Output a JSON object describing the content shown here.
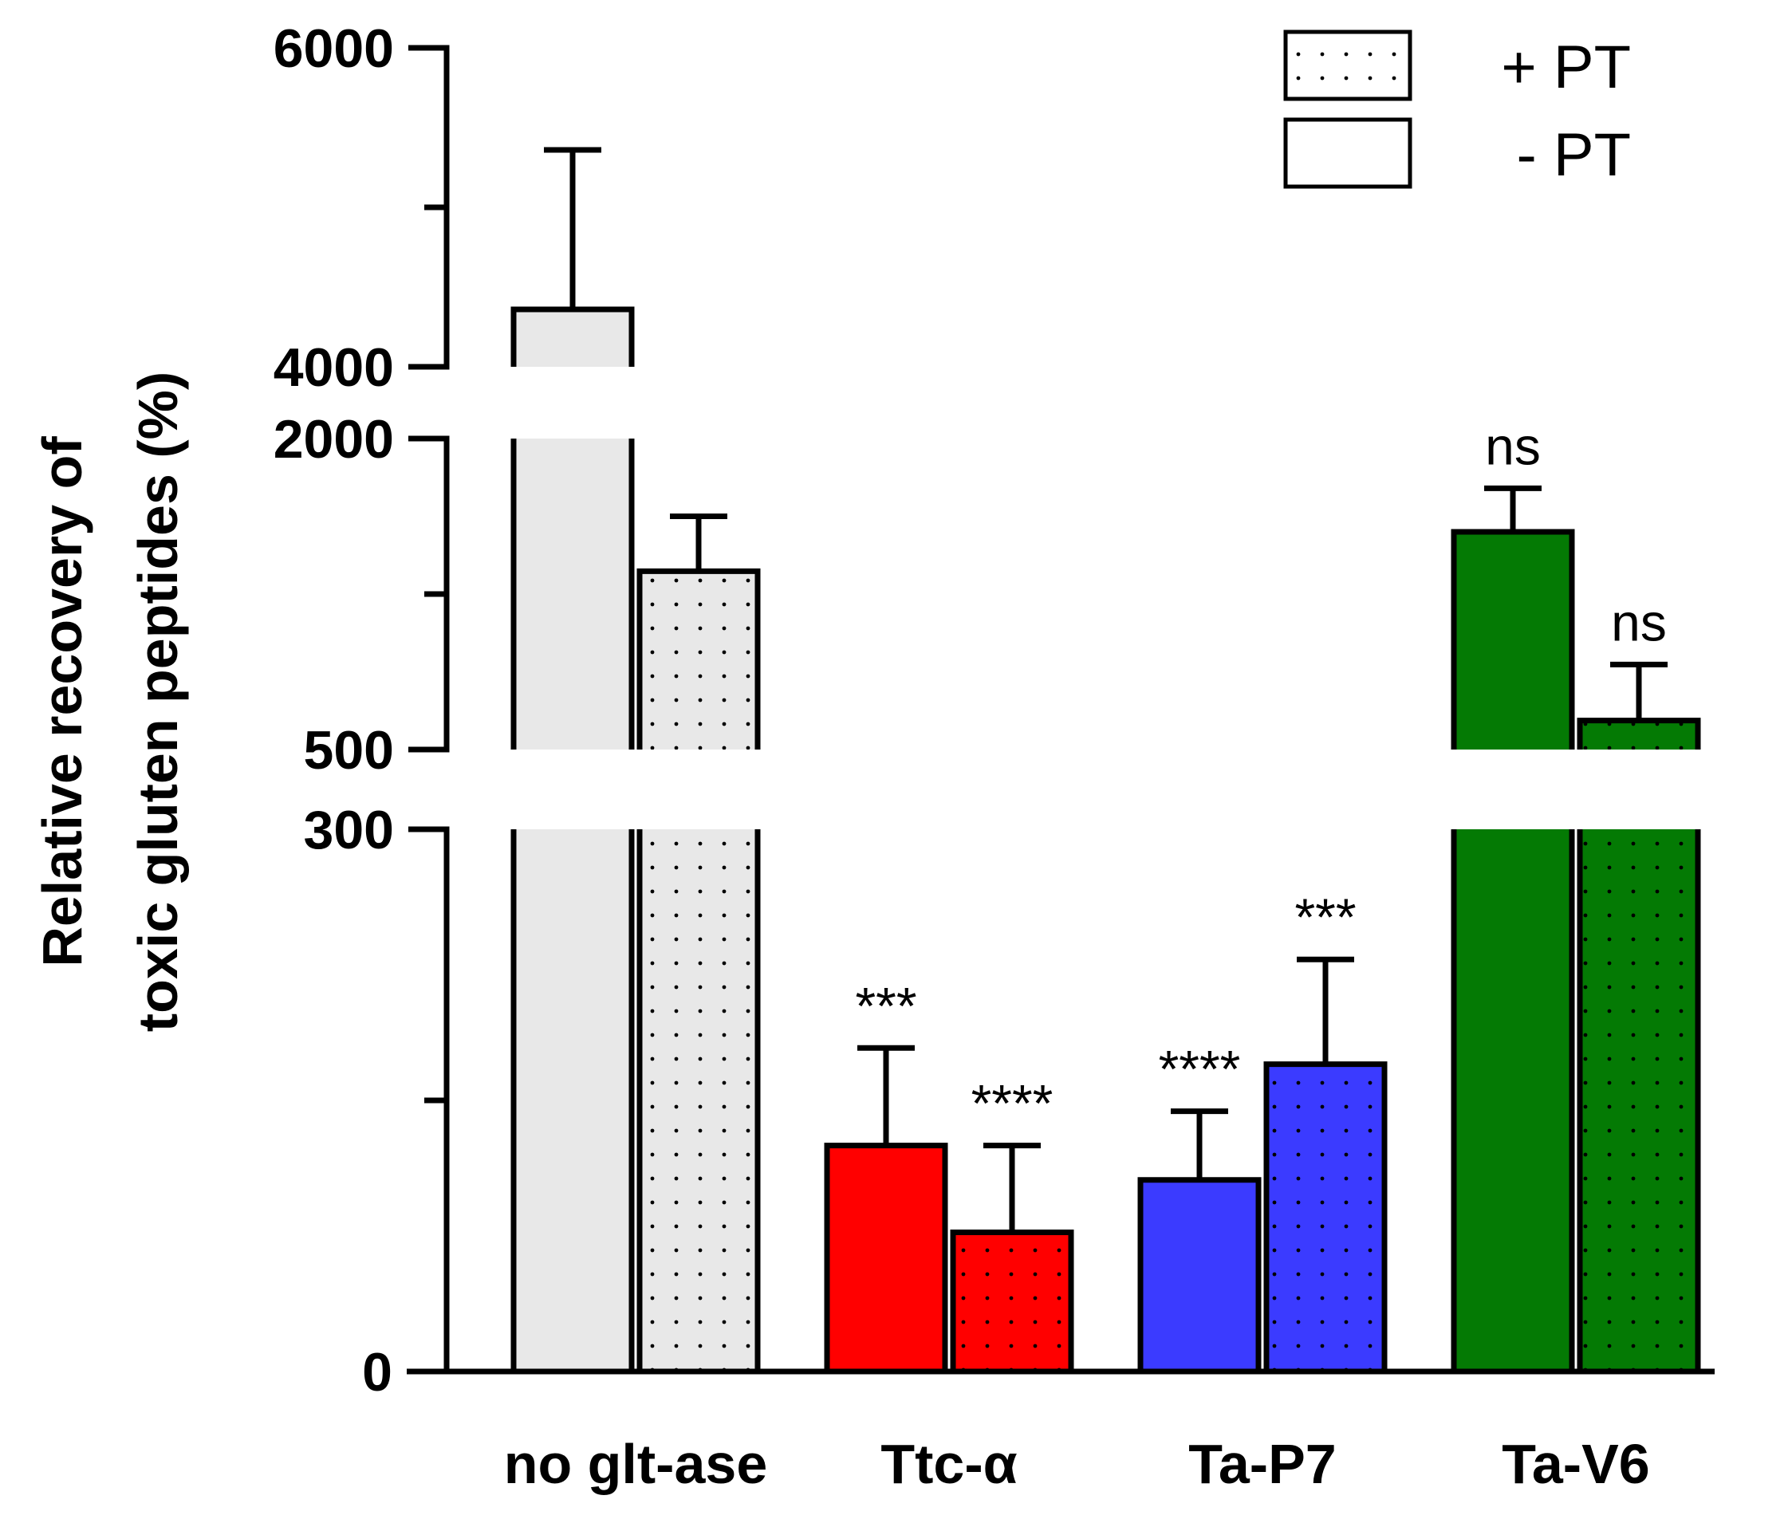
{
  "chart_data": {
    "type": "bar",
    "title": "",
    "xlabel": "",
    "ylabel": [
      "Relative recovery of",
      "toxic gluten peptides (%)"
    ],
    "categories": [
      "no glt-ase",
      "Ttc-α",
      "Ta-P7",
      "Ta-V6"
    ],
    "y_axis_broken": true,
    "y_segments": [
      {
        "range": [
          0,
          300
        ],
        "ticks": [
          0,
          150,
          300
        ],
        "tick_labels": [
          "0",
          "",
          "300"
        ]
      },
      {
        "range": [
          500,
          2000
        ],
        "ticks": [
          500,
          1250,
          2000
        ],
        "tick_labels": [
          "500",
          "",
          "2000"
        ]
      },
      {
        "range": [
          4000,
          6000
        ],
        "ticks": [
          4000,
          5000,
          6000
        ],
        "tick_labels": [
          "4000",
          "",
          "6000"
        ]
      }
    ],
    "series": [
      {
        "name": "- PT",
        "pattern": "solid",
        "values": [
          4360,
          125,
          106,
          1550
        ],
        "errors": [
          1000,
          54,
          38,
          210
        ],
        "significance": [
          "",
          "***",
          "****",
          "ns"
        ]
      },
      {
        "name": "+ PT",
        "pattern": "dotted",
        "values": [
          1360,
          77,
          170,
          640
        ],
        "errors": [
          265,
          48,
          58,
          270
        ],
        "significance": [
          "",
          "****",
          "***",
          "ns"
        ]
      }
    ],
    "bar_colors": [
      "#e8e8e8",
      "#ff0000",
      "#3b3bff",
      "#047a04"
    ],
    "legend_position": "top-right",
    "grid": false
  }
}
